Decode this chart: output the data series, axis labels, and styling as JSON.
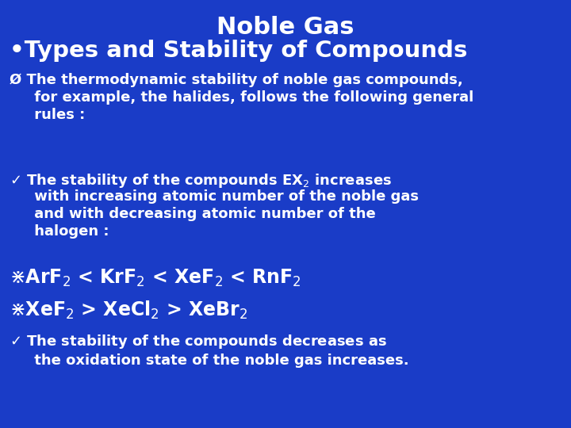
{
  "background_color": "#1a3cc7",
  "text_color": "#ffffff",
  "title": "Noble Gas",
  "subtitle": "•Types and Stability of Compounds",
  "title_fontsize": 22,
  "subtitle_fontsize": 21,
  "body_fontsize": 13,
  "formula_fontsize": 17,
  "bullet1": "Ø The thermodynamic stability of noble gas compounds,\n     for example, the halides, follows the following general\n     rules :",
  "bullet2_a": "✓ The stability of the compounds EX",
  "bullet2_b": " increases",
  "bullet2_c": "     with increasing atomic number of the noble gas\n     and with decreasing atomic number of the\n     halogen :",
  "bullet3": "❖ArF₂ < KrF₂ < XeF₂ < RnF₂",
  "bullet4": "❖XeF₂ > XeCl₂ > XeBr₂",
  "bullet5": "✓ The stability of the compounds decreases as\n     the oxidation state of the noble gas increases."
}
